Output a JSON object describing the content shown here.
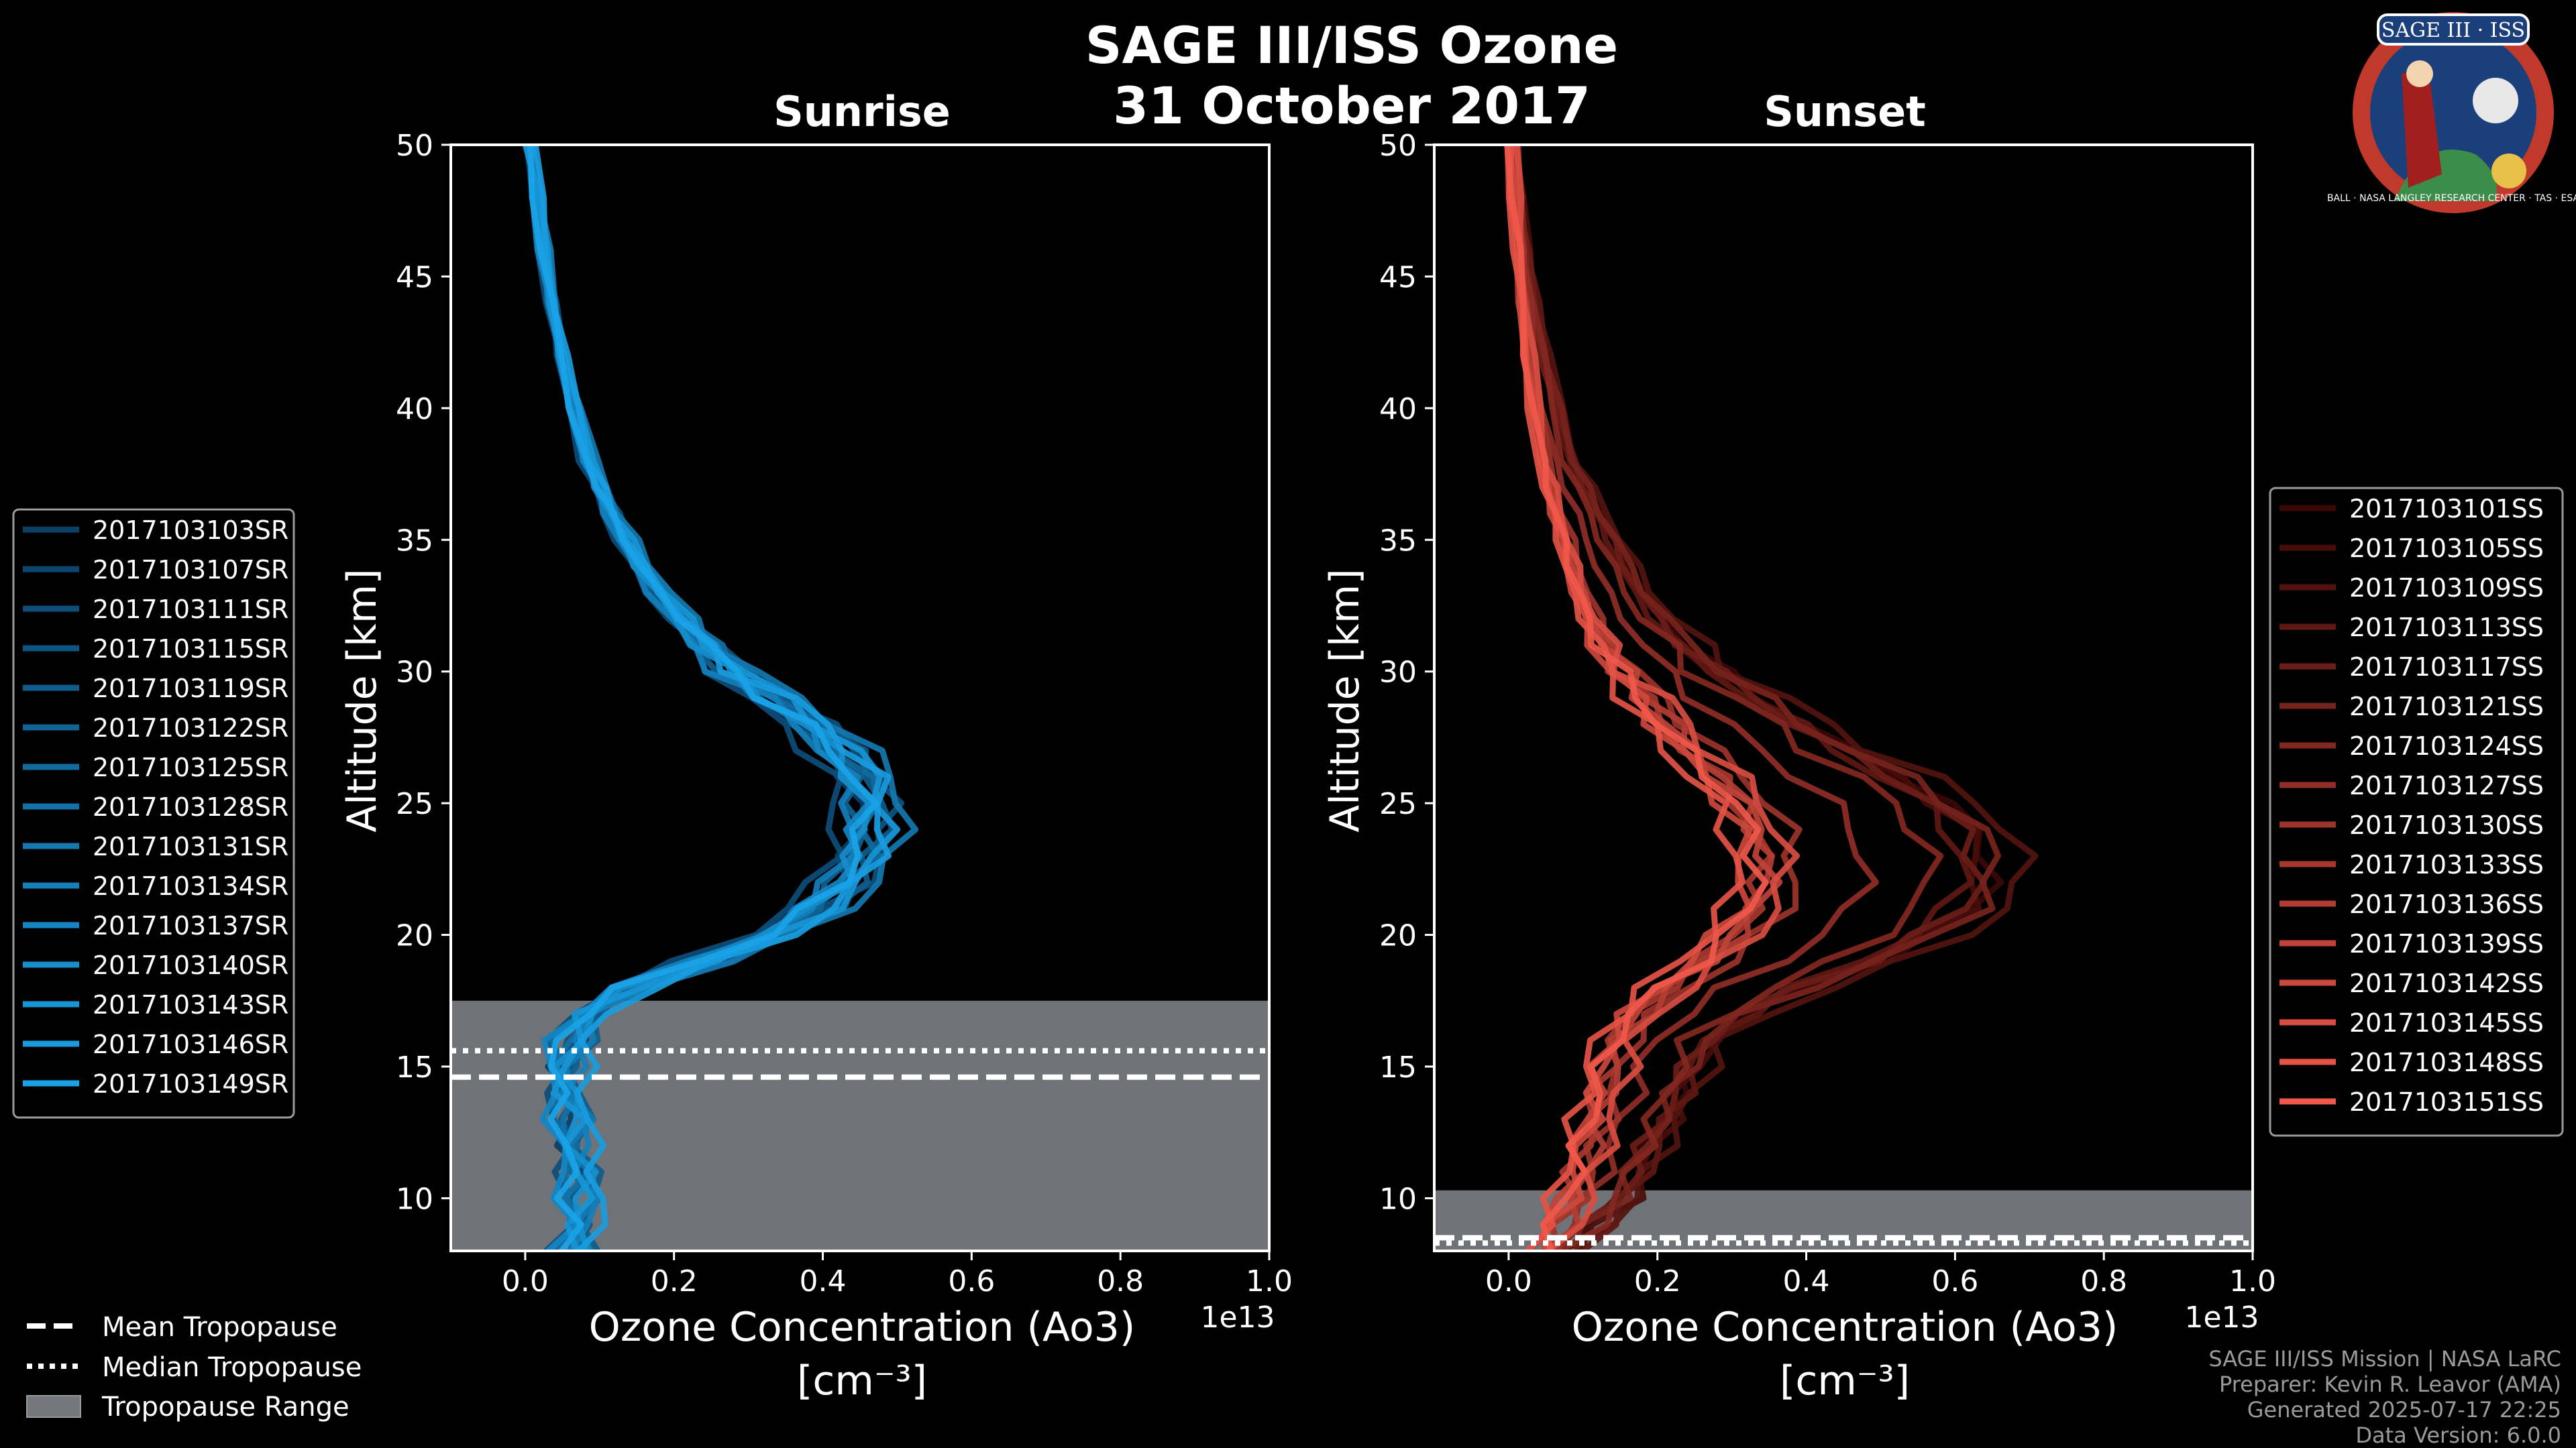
{
  "title": "SAGE III/ISS Ozone",
  "subtitle": "31 October 2017",
  "logo": {
    "text": "SAGE III · ISS",
    "ring_text": "BALL · NASA LANGLEY RESEARCH CENTER · TAS · ESA",
    "colors": {
      "ring": "#c0392b",
      "inner": "#1b3f7a",
      "gold": "#e8c04a"
    }
  },
  "footer": {
    "line1": "SAGE III/ISS Mission | NASA LaRC",
    "line2": "Preparer: Kevin R. Leavor (AMA)",
    "line3": "Generated 2025-07-17 22:25",
    "line4": "Data Version: 6.0.0"
  },
  "tropopause_legend": {
    "mean": "Mean Tropopause",
    "median": "Median Tropopause",
    "range": "Tropopause Range"
  },
  "chart_data": [
    {
      "type": "line",
      "title": "Sunrise",
      "xlabel": "Ozone Concentration (Ao3)",
      "xunit": "[cm⁻³]",
      "ylabel": "Altitude [km]",
      "xlim": [
        -0.1,
        1.0
      ],
      "ylim": [
        8,
        50
      ],
      "x_scale_label": "1e13",
      "xticks": [
        0.0,
        0.2,
        0.4,
        0.6,
        0.8,
        1.0
      ],
      "xtick_labels": [
        "0.0",
        "0.2",
        "0.4",
        "0.6",
        "0.8",
        "1.0"
      ],
      "yticks": [
        10,
        15,
        20,
        25,
        30,
        35,
        40,
        45,
        50
      ],
      "ytick_labels": [
        "10",
        "15",
        "20",
        "25",
        "30",
        "35",
        "40",
        "45",
        "50"
      ],
      "tropopause": {
        "mean": 14.6,
        "median": 15.6,
        "range": [
          8,
          17.5
        ]
      },
      "color_start": "#0a3f66",
      "color_end": "#1aa3e8",
      "legend_position": "left",
      "base_profile": {
        "alt": [
          8,
          9,
          10,
          11,
          12,
          13,
          14,
          15,
          16,
          17,
          18,
          19,
          20,
          21,
          22,
          23,
          24,
          25,
          26,
          27,
          28,
          29,
          30,
          31,
          32,
          33,
          34,
          35,
          36,
          37,
          38,
          40,
          42,
          44,
          46,
          48,
          50
        ],
        "ozone": [
          0.06,
          0.07,
          0.07,
          0.07,
          0.06,
          0.06,
          0.05,
          0.05,
          0.06,
          0.08,
          0.14,
          0.24,
          0.33,
          0.39,
          0.43,
          0.45,
          0.46,
          0.46,
          0.45,
          0.42,
          0.38,
          0.33,
          0.28,
          0.24,
          0.21,
          0.18,
          0.155,
          0.135,
          0.115,
          0.1,
          0.085,
          0.065,
          0.048,
          0.035,
          0.025,
          0.015,
          0.005
        ]
      },
      "series": [
        {
          "name": "2017103103SR",
          "scale": 0.97,
          "shift": 0.0
        },
        {
          "name": "2017103107SR",
          "scale": 1.03,
          "shift": 0.01
        },
        {
          "name": "2017103111SR",
          "scale": 0.93,
          "shift": -0.01
        },
        {
          "name": "2017103115SR",
          "scale": 1.06,
          "shift": 0.0
        },
        {
          "name": "2017103119SR",
          "scale": 1.0,
          "shift": 0.02
        },
        {
          "name": "2017103122SR",
          "scale": 0.95,
          "shift": 0.01
        },
        {
          "name": "2017103125SR",
          "scale": 1.04,
          "shift": -0.01
        },
        {
          "name": "2017103128SR",
          "scale": 0.99,
          "shift": 0.0
        },
        {
          "name": "2017103131SR",
          "scale": 1.08,
          "shift": 0.01
        },
        {
          "name": "2017103134SR",
          "scale": 0.91,
          "shift": 0.02
        },
        {
          "name": "2017103137SR",
          "scale": 1.02,
          "shift": -0.02
        },
        {
          "name": "2017103140SR",
          "scale": 0.96,
          "shift": 0.01
        },
        {
          "name": "2017103143SR",
          "scale": 1.05,
          "shift": 0.0
        },
        {
          "name": "2017103146SR",
          "scale": 0.98,
          "shift": 0.03
        },
        {
          "name": "2017103149SR",
          "scale": 1.01,
          "shift": -0.01
        }
      ]
    },
    {
      "type": "line",
      "title": "Sunset",
      "xlabel": "Ozone Concentration (Ao3)",
      "xunit": "[cm⁻³]",
      "ylabel": "Altitude [km]",
      "xlim": [
        -0.1,
        1.0
      ],
      "ylim": [
        8,
        50
      ],
      "x_scale_label": "1e13",
      "xticks": [
        0.0,
        0.2,
        0.4,
        0.6,
        0.8,
        1.0
      ],
      "xtick_labels": [
        "0.0",
        "0.2",
        "0.4",
        "0.6",
        "0.8",
        "1.0"
      ],
      "yticks": [
        10,
        15,
        20,
        25,
        30,
        35,
        40,
        45,
        50
      ],
      "ytick_labels": [
        "10",
        "15",
        "20",
        "25",
        "30",
        "35",
        "40",
        "45",
        "50"
      ],
      "tropopause": {
        "mean": 8.5,
        "median": 8.3,
        "range": [
          8,
          10.3
        ]
      },
      "color_start": "#3a0806",
      "color_end": "#f0584a",
      "legend_position": "right",
      "base_profile": {
        "alt": [
          8,
          9,
          10,
          11,
          12,
          13,
          14,
          15,
          16,
          17,
          18,
          19,
          20,
          21,
          22,
          23,
          24,
          25,
          26,
          27,
          28,
          29,
          30,
          31,
          32,
          33,
          34,
          35,
          36,
          37,
          38,
          40,
          42,
          44,
          46,
          48,
          50
        ],
        "ozone": [
          0.04,
          0.06,
          0.08,
          0.09,
          0.1,
          0.11,
          0.12,
          0.13,
          0.14,
          0.17,
          0.21,
          0.26,
          0.3,
          0.33,
          0.34,
          0.34,
          0.33,
          0.31,
          0.28,
          0.24,
          0.21,
          0.18,
          0.15,
          0.13,
          0.11,
          0.095,
          0.085,
          0.075,
          0.065,
          0.055,
          0.045,
          0.035,
          0.025,
          0.018,
          0.012,
          0.007,
          0.002
        ]
      },
      "series": [
        {
          "name": "2017103101SS",
          "scale": 1.9,
          "shift": 0.0
        },
        {
          "name": "2017103105SS",
          "scale": 1.8,
          "shift": 0.02
        },
        {
          "name": "2017103109SS",
          "scale": 2.0,
          "shift": 0.01
        },
        {
          "name": "2017103113SS",
          "scale": 1.7,
          "shift": 0.03
        },
        {
          "name": "2017103117SS",
          "scale": 1.85,
          "shift": 0.0
        },
        {
          "name": "2017103121SS",
          "scale": 1.95,
          "shift": -0.01
        },
        {
          "name": "2017103124SS",
          "scale": 1.6,
          "shift": 0.02
        },
        {
          "name": "2017103127SS",
          "scale": 1.4,
          "shift": 0.0
        },
        {
          "name": "2017103130SS",
          "scale": 1.1,
          "shift": 0.01
        },
        {
          "name": "2017103133SS",
          "scale": 1.0,
          "shift": 0.0
        },
        {
          "name": "2017103136SS",
          "scale": 0.95,
          "shift": 0.02
        },
        {
          "name": "2017103139SS",
          "scale": 1.05,
          "shift": -0.01
        },
        {
          "name": "2017103142SS",
          "scale": 0.9,
          "shift": 0.01
        },
        {
          "name": "2017103145SS",
          "scale": 1.0,
          "shift": 0.03
        },
        {
          "name": "2017103148SS",
          "scale": 0.92,
          "shift": -0.01
        },
        {
          "name": "2017103151SS",
          "scale": 0.98,
          "shift": 0.0
        }
      ]
    }
  ]
}
